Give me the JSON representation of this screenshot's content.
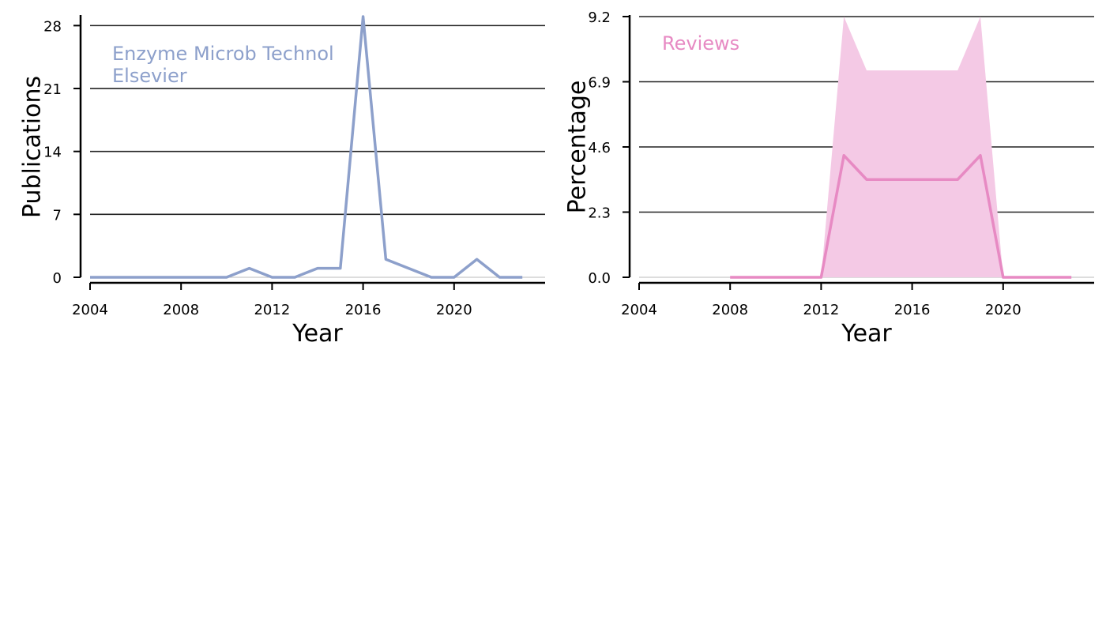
{
  "chart_data": [
    {
      "type": "line",
      "xlabel": "Year",
      "ylabel": "Publications",
      "xlim": [
        2004,
        2024
      ],
      "ylim": [
        0,
        29
      ],
      "xticks": [
        2004,
        2008,
        2012,
        2016,
        2020
      ],
      "yticks": [
        0,
        7,
        14,
        21,
        28
      ],
      "ytick_labels": [
        "0",
        "7",
        "14",
        "21",
        "28"
      ],
      "grid": "horizontal",
      "annotation": [
        "Enzyme Microb Technol",
        "Elsevier"
      ],
      "color": "#8DA0CB",
      "x": [
        2004,
        2005,
        2006,
        2007,
        2008,
        2009,
        2010,
        2011,
        2012,
        2013,
        2014,
        2015,
        2016,
        2017,
        2018,
        2019,
        2020,
        2021,
        2022,
        2023
      ],
      "values": [
        0,
        0,
        0,
        0,
        0,
        0,
        0,
        1,
        0,
        0,
        1,
        1,
        29,
        2,
        1,
        0,
        0,
        2,
        0,
        0
      ]
    },
    {
      "type": "area",
      "xlabel": "Year",
      "ylabel": "Percentage",
      "xlim": [
        2004,
        2024
      ],
      "ylim": [
        0,
        9.2
      ],
      "xticks": [
        2004,
        2008,
        2012,
        2016,
        2020
      ],
      "yticks": [
        0,
        2.3,
        4.6,
        6.9,
        9.2
      ],
      "ytick_labels": [
        "0.0",
        "2.3",
        "4.6",
        "6.9",
        "9.2"
      ],
      "grid": "horizontal",
      "annotation": [
        "Reviews"
      ],
      "color": "#E78AC3",
      "fill_color": "#F4C9E5",
      "x": [
        2008,
        2009,
        2010,
        2011,
        2012,
        2013,
        2014,
        2015,
        2016,
        2017,
        2018,
        2019,
        2020,
        2021,
        2022,
        2023
      ],
      "values": [
        0,
        0,
        0,
        0,
        0,
        4.3,
        3.45,
        3.45,
        3.45,
        3.45,
        3.45,
        4.3,
        0,
        0,
        0,
        0
      ],
      "upper": [
        0,
        0,
        0,
        0,
        0,
        9.2,
        7.3,
        7.3,
        7.3,
        7.3,
        7.3,
        9.2,
        0,
        0,
        0,
        0
      ],
      "lower": [
        0,
        0,
        0,
        0,
        0,
        0,
        0,
        0,
        0,
        0,
        0,
        0,
        0,
        0,
        0,
        0
      ]
    }
  ]
}
